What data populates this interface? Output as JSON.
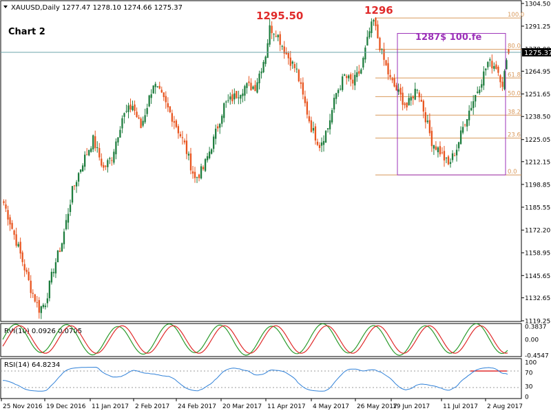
{
  "header": {
    "symbol_line": "XAUUSD,Daily  1277.47 1278.10 1274.66 1275.37",
    "chart_label": "Chart 2"
  },
  "annotations": {
    "peak1": "1295.50",
    "peak2": "1296",
    "target": "1287$ 100.fe"
  },
  "price_tag": "1275.37",
  "colors": {
    "up": "#1e7d3e",
    "down": "#e8541e",
    "fib": "#d8985a",
    "box": "#9b30b8",
    "peak_text": "#e02a2a",
    "rvi_main": "#2a9a2a",
    "rvi_signal": "#e02a2a",
    "rsi": "#2f80d8",
    "rsi_level": "#e02a2a"
  },
  "chart_data": [
    {
      "type": "candlestick",
      "title": "XAUUSD,Daily",
      "ylim": [
        1119.25,
        1304.5
      ],
      "y_ticks": [
        "1304.50",
        "1291.25",
        "1278.00",
        "1264.95",
        "1251.65",
        "1238.50",
        "1225.05",
        "1212.15",
        "1198.85",
        "1185.55",
        "1172.20",
        "1158.95",
        "1145.65",
        "1132.65",
        "1119.25"
      ],
      "x_ticks": [
        "25 Nov 2016",
        "19 Dec 2016",
        "11 Jan 2017",
        "2 Feb 2017",
        "24 Feb 2017",
        "20 Mar 2017",
        "11 Apr 2017",
        "4 May 2017",
        "26 May 2017",
        "19 Jun 2017",
        "11 Jul 2017",
        "2 Aug 2017"
      ],
      "anchors": [
        [
          0,
          1188
        ],
        [
          3,
          1177
        ],
        [
          8,
          1158
        ],
        [
          13,
          1138
        ],
        [
          17,
          1126
        ],
        [
          20,
          1130
        ],
        [
          24,
          1150
        ],
        [
          28,
          1165
        ],
        [
          33,
          1195
        ],
        [
          38,
          1212
        ],
        [
          43,
          1225
        ],
        [
          48,
          1208
        ],
        [
          52,
          1215
        ],
        [
          57,
          1238
        ],
        [
          62,
          1245
        ],
        [
          66,
          1232
        ],
        [
          72,
          1258
        ],
        [
          76,
          1250
        ],
        [
          82,
          1236
        ],
        [
          87,
          1222
        ],
        [
          92,
          1202
        ],
        [
          96,
          1208
        ],
        [
          101,
          1225
        ],
        [
          106,
          1245
        ],
        [
          111,
          1250
        ],
        [
          116,
          1256
        ],
        [
          121,
          1256
        ],
        [
          126,
          1275
        ],
        [
          128,
          1290
        ],
        [
          131,
          1288
        ],
        [
          136,
          1275
        ],
        [
          141,
          1265
        ],
        [
          144,
          1250
        ],
        [
          148,
          1232
        ],
        [
          152,
          1222
        ],
        [
          156,
          1232
        ],
        [
          160,
          1252
        ],
        [
          164,
          1262
        ],
        [
          168,
          1258
        ],
        [
          172,
          1266
        ],
        [
          176,
          1288
        ],
        [
          178,
          1294
        ],
        [
          182,
          1275
        ],
        [
          186,
          1260
        ],
        [
          191,
          1250
        ],
        [
          194,
          1244
        ],
        [
          199,
          1256
        ],
        [
          203,
          1238
        ],
        [
          206,
          1224
        ],
        [
          210,
          1218
        ],
        [
          214,
          1210
        ],
        [
          218,
          1220
        ],
        [
          222,
          1236
        ],
        [
          226,
          1248
        ],
        [
          230,
          1260
        ],
        [
          233,
          1270
        ],
        [
          237,
          1268
        ],
        [
          240,
          1258
        ],
        [
          243,
          1275
        ]
      ],
      "last": {
        "open": 1277.47,
        "high": 1278.1,
        "low": 1274.66,
        "close": 1275.37
      },
      "fibonacci": {
        "levels": [
          {
            "label": "100.0",
            "price": 1296.0
          },
          {
            "label": "80.0",
            "price": 1277.7
          },
          {
            "label": "61.8",
            "price": 1261.0
          },
          {
            "label": "50.0",
            "price": 1250.1
          },
          {
            "label": "38.2",
            "price": 1239.3
          },
          {
            "label": "23.6",
            "price": 1225.9
          },
          {
            "label": "0.0",
            "price": 1204.4
          }
        ]
      },
      "target_box": {
        "top": 1287.0,
        "bottom": 1204.4
      }
    },
    {
      "type": "line",
      "title": "RVI(10) 0.0926 0.0705",
      "ylim": [
        -0.4547,
        0.3837
      ],
      "y_ticks": [
        "0.3837",
        "0.00",
        "-0.4547"
      ],
      "series": [
        {
          "values": [
            0.0926
          ]
        },
        {
          "values": [
            0.0705
          ]
        }
      ]
    },
    {
      "type": "line",
      "title": "RSI(14) 64.8234",
      "ylim": [
        0,
        100
      ],
      "y_ticks": [
        "100",
        "70",
        "30",
        "0"
      ],
      "levels": [
        70,
        30
      ],
      "series": [
        {
          "values": [
            64.8234
          ]
        }
      ]
    }
  ]
}
